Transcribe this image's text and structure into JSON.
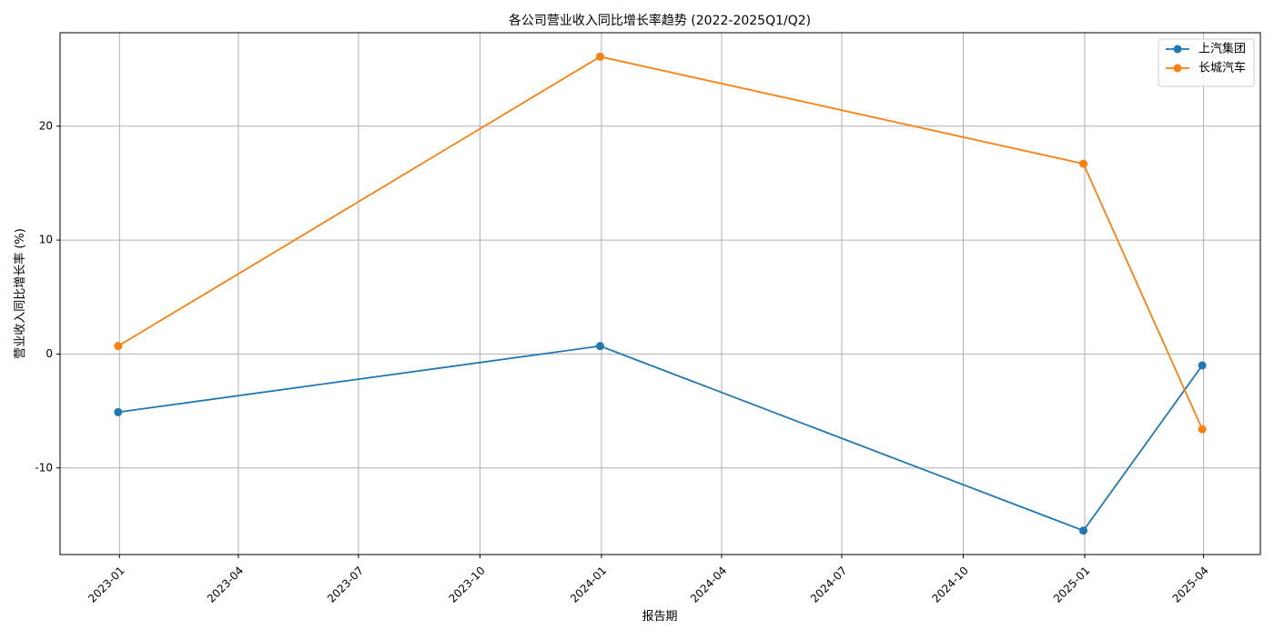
{
  "chart_data": {
    "type": "line",
    "title": "各公司营业收入同比增长率趋势 (2022-2025Q1/Q2)",
    "xlabel": "报告期",
    "ylabel": "营业收入同比增长率 (%)",
    "x_tick_labels": [
      "2023-01",
      "2023-04",
      "2023-07",
      "2023-10",
      "2024-01",
      "2024-04",
      "2024-07",
      "2024-10",
      "2025-01",
      "2025-04"
    ],
    "x_ticks": [
      "2023-01-01",
      "2023-04-01",
      "2023-07-01",
      "2023-10-01",
      "2024-01-01",
      "2024-04-01",
      "2024-07-01",
      "2024-10-01",
      "2025-01-01",
      "2025-04-01"
    ],
    "x": [
      "2022-12-31",
      "2023-12-31",
      "2024-12-31",
      "2025-03-31"
    ],
    "xlim": [
      "2022-11-17",
      "2025-05-14"
    ],
    "y_ticks": [
      -10,
      0,
      10,
      20
    ],
    "y_tick_labels": [
      "-10",
      "0",
      "10",
      "20"
    ],
    "ylim": [
      -17.6,
      28.2
    ],
    "grid": true,
    "legend_position": "upper-right",
    "series": [
      {
        "name": "上汽集团",
        "color": "#1f77b4",
        "values": [
          -5.1,
          0.7,
          -15.5,
          -1.0
        ]
      },
      {
        "name": "长城汽车",
        "color": "#ff7f0e",
        "values": [
          0.7,
          26.1,
          16.7,
          -6.6
        ]
      }
    ]
  }
}
